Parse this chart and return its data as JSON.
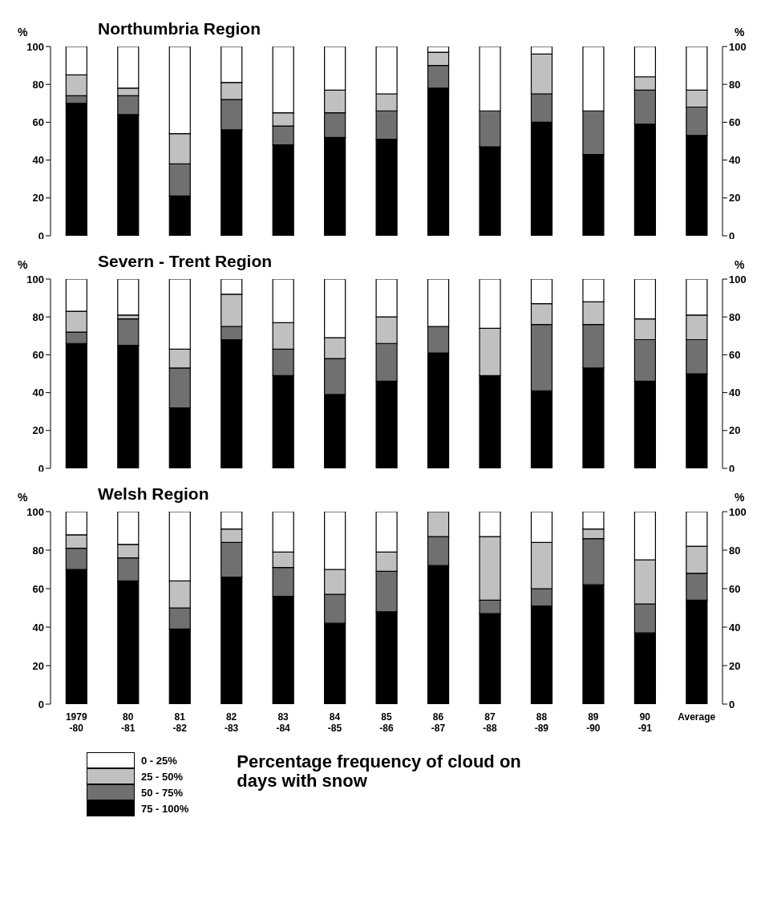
{
  "chart_data": [
    {
      "type": "bar",
      "title": "Northumbria Region",
      "ylabel": "%",
      "y2label": "%",
      "stacked": true,
      "tick_labels": "y",
      "categories": [
        null,
        null,
        null,
        null,
        null,
        null,
        null,
        null,
        null,
        null,
        null,
        null,
        null
      ],
      "series": [
        {
          "color": "#000000",
          "values": [
            70,
            64,
            21,
            56,
            48,
            52,
            51,
            78,
            47,
            60,
            43,
            59,
            53
          ]
        },
        {
          "color": "#707070",
          "values": [
            4,
            10,
            17,
            16,
            10,
            13,
            15,
            12,
            19,
            15,
            23,
            18,
            15
          ]
        },
        {
          "color": "#c0c0c0",
          "values": [
            11,
            4,
            16,
            9,
            7,
            12,
            9,
            7,
            0,
            21,
            0,
            7,
            9
          ]
        },
        {
          "color": "#ffffff",
          "values": [
            15,
            22,
            46,
            19,
            35,
            23,
            25,
            3,
            34,
            4,
            34,
            16,
            23
          ]
        }
      ],
      "ylim": [
        0,
        100
      ],
      "yticks": [
        0,
        20,
        40,
        60,
        80,
        100
      ],
      "y2lim": [
        0,
        100
      ],
      "y2ticks": [
        0,
        20,
        40,
        60,
        80,
        100
      ]
    },
    {
      "type": "bar",
      "title": "Severn - Trent Region",
      "ylabel": "%",
      "y2label": "%",
      "stacked": true,
      "tick_labels": "y",
      "categories": [
        null,
        null,
        null,
        null,
        null,
        null,
        null,
        null,
        null,
        null,
        null,
        null,
        null
      ],
      "series": [
        {
          "color": "#000000",
          "values": [
            66,
            65,
            32,
            68,
            49,
            39,
            46,
            61,
            49,
            41,
            53,
            46,
            50
          ]
        },
        {
          "color": "#707070",
          "values": [
            6,
            14,
            21,
            7,
            14,
            19,
            20,
            14,
            0,
            35,
            23,
            22,
            18
          ]
        },
        {
          "color": "#c0c0c0",
          "values": [
            11,
            2,
            10,
            17,
            14,
            11,
            14,
            0,
            25,
            11,
            12,
            11,
            13
          ]
        },
        {
          "color": "#ffffff",
          "values": [
            17,
            19,
            37,
            8,
            23,
            31,
            20,
            25,
            26,
            13,
            12,
            21,
            19
          ]
        }
      ],
      "ylim": [
        0,
        100
      ],
      "yticks": [
        0,
        20,
        40,
        60,
        80,
        100
      ],
      "y2lim": [
        0,
        100
      ],
      "y2ticks": [
        0,
        20,
        40,
        60,
        80,
        100
      ]
    },
    {
      "type": "bar",
      "title": "Welsh Region",
      "ylabel": "%",
      "y2label": "%",
      "stacked": true,
      "legend": "bottom left",
      "annotations": [
        "Percentage frequency of cloud on days with snow"
      ],
      "categories": [
        "1979\n-80",
        "80\n-81",
        "81\n-82",
        "82\n-83",
        "83\n-84",
        "84\n-85",
        "85\n-86",
        "86\n-87",
        "87\n-88",
        "88\n-89",
        "89\n-90",
        "90\n-91",
        "Average"
      ],
      "series": [
        {
          "name": "75 - 100%",
          "color": "#000000",
          "values": [
            70,
            64,
            39,
            66,
            56,
            42,
            48,
            72,
            47,
            51,
            62,
            37,
            54
          ]
        },
        {
          "name": "50 - 75%",
          "color": "#707070",
          "values": [
            11,
            12,
            11,
            18,
            15,
            15,
            21,
            15,
            7,
            9,
            24,
            15,
            14
          ]
        },
        {
          "name": "25 - 50%",
          "color": "#c0c0c0",
          "values": [
            7,
            7,
            14,
            7,
            8,
            13,
            10,
            13,
            33,
            24,
            5,
            23,
            14
          ]
        },
        {
          "name": "0 - 25%",
          "color": "#ffffff",
          "values": [
            12,
            17,
            36,
            9,
            21,
            30,
            21,
            0,
            13,
            16,
            9,
            25,
            18
          ]
        }
      ],
      "ylim": [
        0,
        100
      ],
      "yticks": [
        0,
        20,
        40,
        60,
        80,
        100
      ],
      "y2lim": [
        0,
        100
      ],
      "y2ticks": [
        0,
        20,
        40,
        60,
        80,
        100
      ]
    }
  ]
}
